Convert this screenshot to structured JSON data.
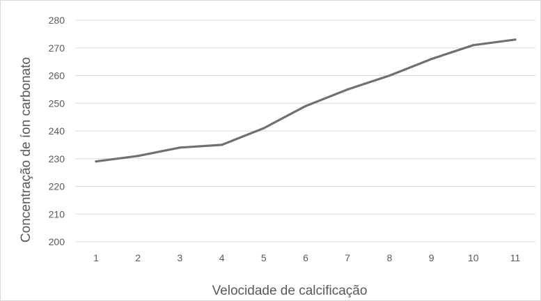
{
  "chart_data": {
    "type": "line",
    "title": "",
    "xlabel": "Velocidade de calcificação",
    "ylabel": "Concentração de íon carbonato",
    "x": [
      1,
      2,
      3,
      4,
      5,
      6,
      7,
      8,
      9,
      10,
      11
    ],
    "x_tick_labels": [
      "1",
      "2",
      "3",
      "4",
      "5",
      "6",
      "7",
      "8",
      "9",
      "10",
      "11"
    ],
    "series": [
      {
        "values": [
          229,
          231,
          234,
          235,
          241,
          249,
          255,
          260,
          266,
          271,
          273
        ],
        "color": "#707070"
      }
    ],
    "ylim": [
      200,
      280
    ],
    "y_ticks": [
      200,
      210,
      220,
      230,
      240,
      250,
      260,
      270,
      280
    ],
    "y_tick_labels": [
      "200",
      "210",
      "220",
      "230",
      "240",
      "250",
      "260",
      "270",
      "280"
    ],
    "grid": true,
    "legend": "none",
    "gridline_color": "#d9d9d9"
  }
}
